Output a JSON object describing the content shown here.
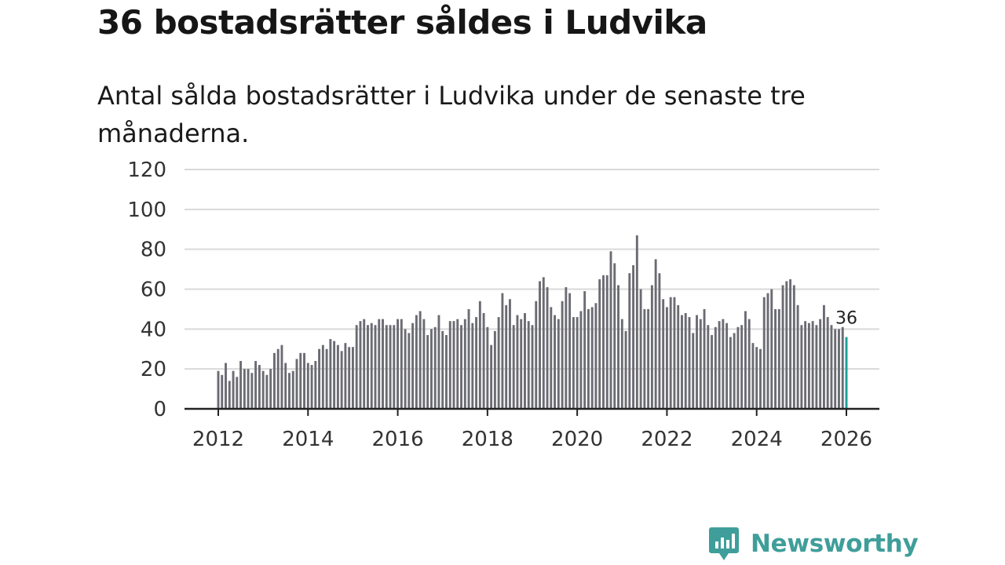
{
  "chart_data": {
    "type": "bar",
    "title": "36 bostadsrätter såldes i Ludvika",
    "subtitle": "Antal sålda bostadsrätter i Ludvika under de senaste tre månaderna.",
    "xlabel": "",
    "ylabel": "",
    "ylim": [
      0,
      120
    ],
    "yticks": [
      0,
      20,
      40,
      60,
      80,
      100,
      120
    ],
    "x_range": [
      2011.5,
      2026.5
    ],
    "xticks": [
      2012,
      2014,
      2016,
      2018,
      2020,
      2022,
      2024,
      2026
    ],
    "x_start": 2012,
    "x_step": 0.0833333,
    "grid": true,
    "colors": {
      "bars": "#6b6b73",
      "highlight": "#1a9e9a",
      "grid": "#d9d9d9",
      "axis": "#222222"
    },
    "highlight_label": "36",
    "values": [
      19,
      17,
      23,
      14,
      19,
      16,
      24,
      20,
      20,
      18,
      24,
      22,
      19,
      17,
      20,
      28,
      30,
      32,
      23,
      18,
      19,
      25,
      28,
      28,
      23,
      22,
      24,
      30,
      32,
      30,
      35,
      34,
      32,
      29,
      33,
      31,
      31,
      42,
      44,
      45,
      42,
      43,
      42,
      45,
      45,
      42,
      42,
      42,
      45,
      45,
      40,
      38,
      43,
      47,
      49,
      45,
      37,
      40,
      41,
      47,
      39,
      37,
      44,
      44,
      45,
      42,
      45,
      50,
      43,
      46,
      54,
      48,
      41,
      32,
      39,
      46,
      58,
      52,
      55,
      42,
      47,
      45,
      48,
      44,
      42,
      54,
      64,
      66,
      61,
      51,
      47,
      45,
      54,
      61,
      58,
      46,
      46,
      49,
      59,
      50,
      51,
      53,
      65,
      67,
      67,
      79,
      73,
      62,
      45,
      39,
      68,
      72,
      87,
      60,
      50,
      50,
      62,
      75,
      68,
      55,
      51,
      56,
      56,
      52,
      47,
      48,
      46,
      38,
      47,
      45,
      50,
      42,
      37,
      41,
      44,
      45,
      43,
      36,
      38,
      41,
      42,
      49,
      45,
      33,
      31,
      30,
      56,
      58,
      60,
      50,
      50,
      62,
      64,
      65,
      62,
      52,
      42,
      44,
      43,
      44,
      42,
      45,
      52,
      46,
      42,
      40,
      40,
      41,
      36
    ]
  },
  "brand": {
    "name": "Newsworthy",
    "icon": "newsworthy-logo-icon",
    "color": "#3f9e9a"
  }
}
